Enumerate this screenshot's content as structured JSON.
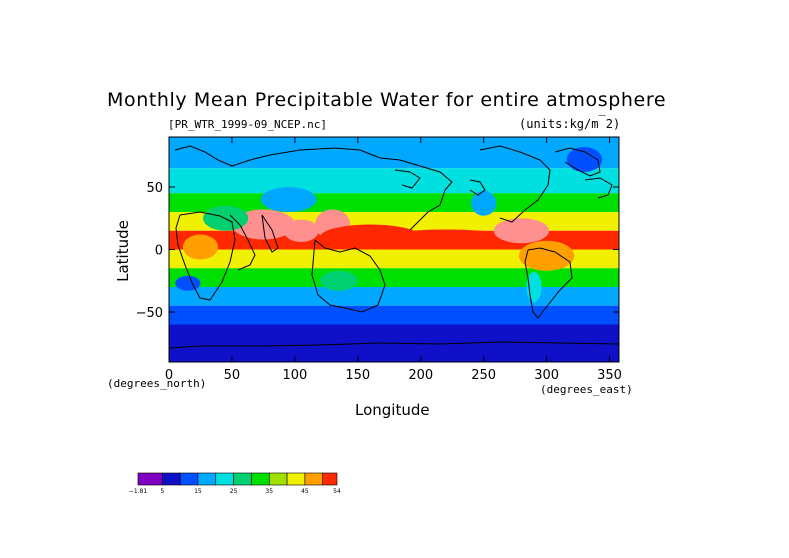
{
  "chart_data": {
    "type": "heatmap",
    "title": "Monthly Mean Precipitable Water for entire atmosphere",
    "subtitle_left": "[PR_WTR_1999-09_NCEP.nc]",
    "subtitle_right": "(units:kg/m^2)",
    "xlabel": "Longitude",
    "ylabel": "Latitude",
    "x_units_label": "(degrees_east)",
    "y_units_label": "(degrees_north)",
    "xlim": [
      0,
      357.5
    ],
    "ylim": [
      -90,
      90
    ],
    "x_ticks": [
      "0",
      "50",
      "100",
      "150",
      "200",
      "250",
      "300",
      "350"
    ],
    "x_tick_values": [
      0,
      50,
      100,
      150,
      200,
      250,
      300,
      350
    ],
    "y_ticks": [
      "50",
      "0",
      "−50"
    ],
    "y_tick_values": [
      50,
      0,
      -50
    ],
    "colorbar": {
      "levels": [
        -1.81,
        5,
        10,
        15,
        20,
        25,
        30,
        35,
        40,
        45,
        50,
        54
      ],
      "labels": [
        "−1.81",
        "5",
        "15",
        "25",
        "35",
        "45",
        "54"
      ],
      "label_values": [
        -1.81,
        5,
        15,
        25,
        35,
        45,
        54
      ],
      "colors": [
        "#8000c0",
        "#1010c8",
        "#0050ff",
        "#00a8ff",
        "#00e0e0",
        "#00d070",
        "#00e000",
        "#a0e000",
        "#f0f000",
        "#ffa000",
        "#ff2800",
        "#ff9090",
        "#ff9090"
      ]
    },
    "bands": [
      {
        "lat_from": 90,
        "lat_to": 65,
        "value": 12
      },
      {
        "lat_from": 65,
        "lat_to": 45,
        "value": 17
      },
      {
        "lat_from": 45,
        "lat_to": 30,
        "value": 25
      },
      {
        "lat_from": 30,
        "lat_to": 15,
        "value": 37
      },
      {
        "lat_from": 15,
        "lat_to": 0,
        "value": 48
      },
      {
        "lat_from": 0,
        "lat_to": -15,
        "value": 38
      },
      {
        "lat_from": -15,
        "lat_to": -30,
        "value": 25
      },
      {
        "lat_from": -30,
        "lat_to": -45,
        "value": 14
      },
      {
        "lat_from": -45,
        "lat_to": -60,
        "value": 8
      },
      {
        "lat_from": -60,
        "lat_to": -70,
        "value": 4
      },
      {
        "lat_from": -70,
        "lat_to": -90,
        "value": 1
      }
    ],
    "blobs": [
      {
        "lon": 75,
        "lat": 20,
        "rlon": 25,
        "rlat": 12,
        "value": 52
      },
      {
        "lon": 105,
        "lat": 15,
        "rlon": 14,
        "rlat": 9,
        "value": 56
      },
      {
        "lon": 130,
        "lat": 20,
        "rlon": 14,
        "rlat": 12,
        "value": 52
      },
      {
        "lon": 160,
        "lat": 10,
        "rlon": 40,
        "rlat": 10,
        "value": 48
      },
      {
        "lon": 220,
        "lat": 10,
        "rlon": 50,
        "rlat": 6,
        "value": 47
      },
      {
        "lon": 280,
        "lat": 15,
        "rlon": 22,
        "rlat": 10,
        "value": 50
      },
      {
        "lon": 300,
        "lat": -5,
        "rlon": 22,
        "rlat": 12,
        "value": 42
      },
      {
        "lon": 25,
        "lat": 2,
        "rlon": 14,
        "rlat": 10,
        "value": 44
      },
      {
        "lon": 45,
        "lat": 25,
        "rlon": 18,
        "rlat": 10,
        "value": 22
      },
      {
        "lon": 250,
        "lat": 37,
        "rlon": 10,
        "rlat": 10,
        "value": 14
      },
      {
        "lon": 15,
        "lat": -27,
        "rlon": 10,
        "rlat": 6,
        "value": 7
      },
      {
        "lon": 290,
        "lat": -30,
        "rlon": 6,
        "rlat": 12,
        "value": 18
      },
      {
        "lon": 95,
        "lat": 40,
        "rlon": 22,
        "rlat": 10,
        "value": 10
      },
      {
        "lon": 330,
        "lat": 72,
        "rlon": 14,
        "rlat": 10,
        "value": 6
      },
      {
        "lon": 135,
        "lat": -25,
        "rlon": 15,
        "rlat": 8,
        "value": 20
      }
    ],
    "grid": false,
    "legend": "bottom-left colorbar"
  }
}
